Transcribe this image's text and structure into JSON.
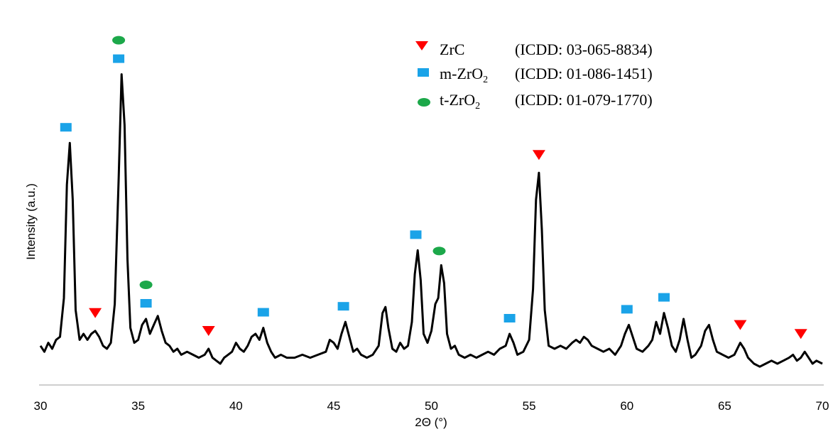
{
  "chart_data": {
    "type": "line",
    "xlabel": "2Θ (°)",
    "ylabel": "Intensity (a.u.)",
    "xlim": [
      30,
      70
    ],
    "x_ticks": [
      30,
      35,
      40,
      45,
      50,
      55,
      60,
      65,
      70
    ],
    "grid": false,
    "legend_position": "top-right",
    "series": [
      {
        "points": [
          [
            30.0,
            0.06
          ],
          [
            30.2,
            0.04
          ],
          [
            30.4,
            0.07
          ],
          [
            30.6,
            0.05
          ],
          [
            30.8,
            0.08
          ],
          [
            31.0,
            0.09
          ],
          [
            31.2,
            0.22
          ],
          [
            31.35,
            0.6
          ],
          [
            31.5,
            0.74
          ],
          [
            31.65,
            0.55
          ],
          [
            31.8,
            0.18
          ],
          [
            32.0,
            0.08
          ],
          [
            32.2,
            0.1
          ],
          [
            32.4,
            0.08
          ],
          [
            32.6,
            0.1
          ],
          [
            32.8,
            0.11
          ],
          [
            33.0,
            0.09
          ],
          [
            33.2,
            0.06
          ],
          [
            33.4,
            0.05
          ],
          [
            33.6,
            0.07
          ],
          [
            33.8,
            0.2
          ],
          [
            34.0,
            0.62
          ],
          [
            34.15,
            0.97
          ],
          [
            34.3,
            0.8
          ],
          [
            34.45,
            0.35
          ],
          [
            34.6,
            0.12
          ],
          [
            34.8,
            0.07
          ],
          [
            35.0,
            0.08
          ],
          [
            35.2,
            0.13
          ],
          [
            35.4,
            0.15
          ],
          [
            35.6,
            0.1
          ],
          [
            35.8,
            0.13
          ],
          [
            36.0,
            0.16
          ],
          [
            36.2,
            0.11
          ],
          [
            36.4,
            0.07
          ],
          [
            36.6,
            0.06
          ],
          [
            36.8,
            0.04
          ],
          [
            37.0,
            0.05
          ],
          [
            37.2,
            0.03
          ],
          [
            37.5,
            0.04
          ],
          [
            37.8,
            0.03
          ],
          [
            38.1,
            0.02
          ],
          [
            38.4,
            0.03
          ],
          [
            38.6,
            0.05
          ],
          [
            38.8,
            0.02
          ],
          [
            39.0,
            0.01
          ],
          [
            39.2,
            0.0
          ],
          [
            39.4,
            0.02
          ],
          [
            39.6,
            0.03
          ],
          [
            39.8,
            0.04
          ],
          [
            40.0,
            0.07
          ],
          [
            40.2,
            0.05
          ],
          [
            40.4,
            0.04
          ],
          [
            40.6,
            0.06
          ],
          [
            40.8,
            0.09
          ],
          [
            41.0,
            0.1
          ],
          [
            41.2,
            0.08
          ],
          [
            41.4,
            0.12
          ],
          [
            41.6,
            0.07
          ],
          [
            41.8,
            0.04
          ],
          [
            42.0,
            0.02
          ],
          [
            42.3,
            0.03
          ],
          [
            42.6,
            0.02
          ],
          [
            43.0,
            0.02
          ],
          [
            43.4,
            0.03
          ],
          [
            43.8,
            0.02
          ],
          [
            44.2,
            0.03
          ],
          [
            44.6,
            0.04
          ],
          [
            44.8,
            0.08
          ],
          [
            45.0,
            0.07
          ],
          [
            45.2,
            0.05
          ],
          [
            45.4,
            0.1
          ],
          [
            45.6,
            0.14
          ],
          [
            45.8,
            0.09
          ],
          [
            46.0,
            0.04
          ],
          [
            46.2,
            0.05
          ],
          [
            46.4,
            0.03
          ],
          [
            46.7,
            0.02
          ],
          [
            47.0,
            0.03
          ],
          [
            47.3,
            0.06
          ],
          [
            47.5,
            0.17
          ],
          [
            47.65,
            0.19
          ],
          [
            47.8,
            0.12
          ],
          [
            48.0,
            0.05
          ],
          [
            48.2,
            0.04
          ],
          [
            48.4,
            0.07
          ],
          [
            48.6,
            0.05
          ],
          [
            48.8,
            0.06
          ],
          [
            49.0,
            0.14
          ],
          [
            49.15,
            0.3
          ],
          [
            49.3,
            0.38
          ],
          [
            49.45,
            0.28
          ],
          [
            49.6,
            0.1
          ],
          [
            49.8,
            0.07
          ],
          [
            50.0,
            0.11
          ],
          [
            50.2,
            0.2
          ],
          [
            50.35,
            0.22
          ],
          [
            50.5,
            0.33
          ],
          [
            50.65,
            0.27
          ],
          [
            50.8,
            0.1
          ],
          [
            51.0,
            0.05
          ],
          [
            51.2,
            0.06
          ],
          [
            51.4,
            0.03
          ],
          [
            51.7,
            0.02
          ],
          [
            52.0,
            0.03
          ],
          [
            52.3,
            0.02
          ],
          [
            52.6,
            0.03
          ],
          [
            52.9,
            0.04
          ],
          [
            53.2,
            0.03
          ],
          [
            53.5,
            0.05
          ],
          [
            53.8,
            0.06
          ],
          [
            54.0,
            0.1
          ],
          [
            54.2,
            0.07
          ],
          [
            54.4,
            0.03
          ],
          [
            54.7,
            0.04
          ],
          [
            55.0,
            0.08
          ],
          [
            55.2,
            0.25
          ],
          [
            55.35,
            0.55
          ],
          [
            55.5,
            0.64
          ],
          [
            55.65,
            0.45
          ],
          [
            55.8,
            0.18
          ],
          [
            56.0,
            0.06
          ],
          [
            56.3,
            0.05
          ],
          [
            56.6,
            0.06
          ],
          [
            56.9,
            0.05
          ],
          [
            57.2,
            0.07
          ],
          [
            57.4,
            0.08
          ],
          [
            57.6,
            0.07
          ],
          [
            57.8,
            0.09
          ],
          [
            58.0,
            0.08
          ],
          [
            58.2,
            0.06
          ],
          [
            58.5,
            0.05
          ],
          [
            58.8,
            0.04
          ],
          [
            59.1,
            0.05
          ],
          [
            59.4,
            0.03
          ],
          [
            59.7,
            0.06
          ],
          [
            59.9,
            0.1
          ],
          [
            60.1,
            0.13
          ],
          [
            60.3,
            0.09
          ],
          [
            60.5,
            0.05
          ],
          [
            60.8,
            0.04
          ],
          [
            61.1,
            0.06
          ],
          [
            61.3,
            0.08
          ],
          [
            61.5,
            0.14
          ],
          [
            61.7,
            0.1
          ],
          [
            61.9,
            0.17
          ],
          [
            62.1,
            0.12
          ],
          [
            62.3,
            0.06
          ],
          [
            62.5,
            0.04
          ],
          [
            62.7,
            0.08
          ],
          [
            62.9,
            0.15
          ],
          [
            63.1,
            0.08
          ],
          [
            63.3,
            0.02
          ],
          [
            63.5,
            0.03
          ],
          [
            63.8,
            0.06
          ],
          [
            64.0,
            0.11
          ],
          [
            64.2,
            0.13
          ],
          [
            64.4,
            0.08
          ],
          [
            64.6,
            0.04
          ],
          [
            64.9,
            0.03
          ],
          [
            65.2,
            0.02
          ],
          [
            65.5,
            0.03
          ],
          [
            65.8,
            0.07
          ],
          [
            66.0,
            0.05
          ],
          [
            66.2,
            0.02
          ],
          [
            66.5,
            0.0
          ],
          [
            66.8,
            -0.01
          ],
          [
            67.1,
            0.0
          ],
          [
            67.4,
            0.01
          ],
          [
            67.7,
            0.0
          ],
          [
            68.0,
            0.01
          ],
          [
            68.3,
            0.02
          ],
          [
            68.5,
            0.03
          ],
          [
            68.7,
            0.01
          ],
          [
            68.9,
            0.02
          ],
          [
            69.1,
            0.04
          ],
          [
            69.3,
            0.02
          ],
          [
            69.5,
            0.0
          ],
          [
            69.7,
            0.01
          ],
          [
            70.0,
            0.0
          ]
        ]
      }
    ],
    "phase_markers": [
      {
        "phase": "ZrC",
        "x": [
          32.8,
          38.6,
          55.5,
          65.8,
          68.9
        ]
      },
      {
        "phase": "m-ZrO2",
        "x": [
          31.3,
          34.0,
          35.4,
          41.4,
          45.5,
          49.2,
          54.0,
          60.0,
          61.9
        ]
      },
      {
        "phase": "t-ZrO2",
        "x": [
          34.0,
          35.4,
          50.4
        ]
      }
    ],
    "legend": [
      {
        "symbol": "red-down-triangle",
        "name": "ZrC",
        "ref": "(ICDD: 03-065-8834)"
      },
      {
        "symbol": "blue-square",
        "name": "m-ZrO2",
        "ref": "(ICDD: 01-086-1451)"
      },
      {
        "symbol": "green-ellipse",
        "name": "t-ZrO2",
        "ref": "(ICDD: 01-079-1770)"
      }
    ],
    "colors": {
      "line": "#000000",
      "zrc": "#ff0000",
      "m_zro2": "#1aa3e8",
      "t_zro2": "#1ca84a"
    }
  }
}
